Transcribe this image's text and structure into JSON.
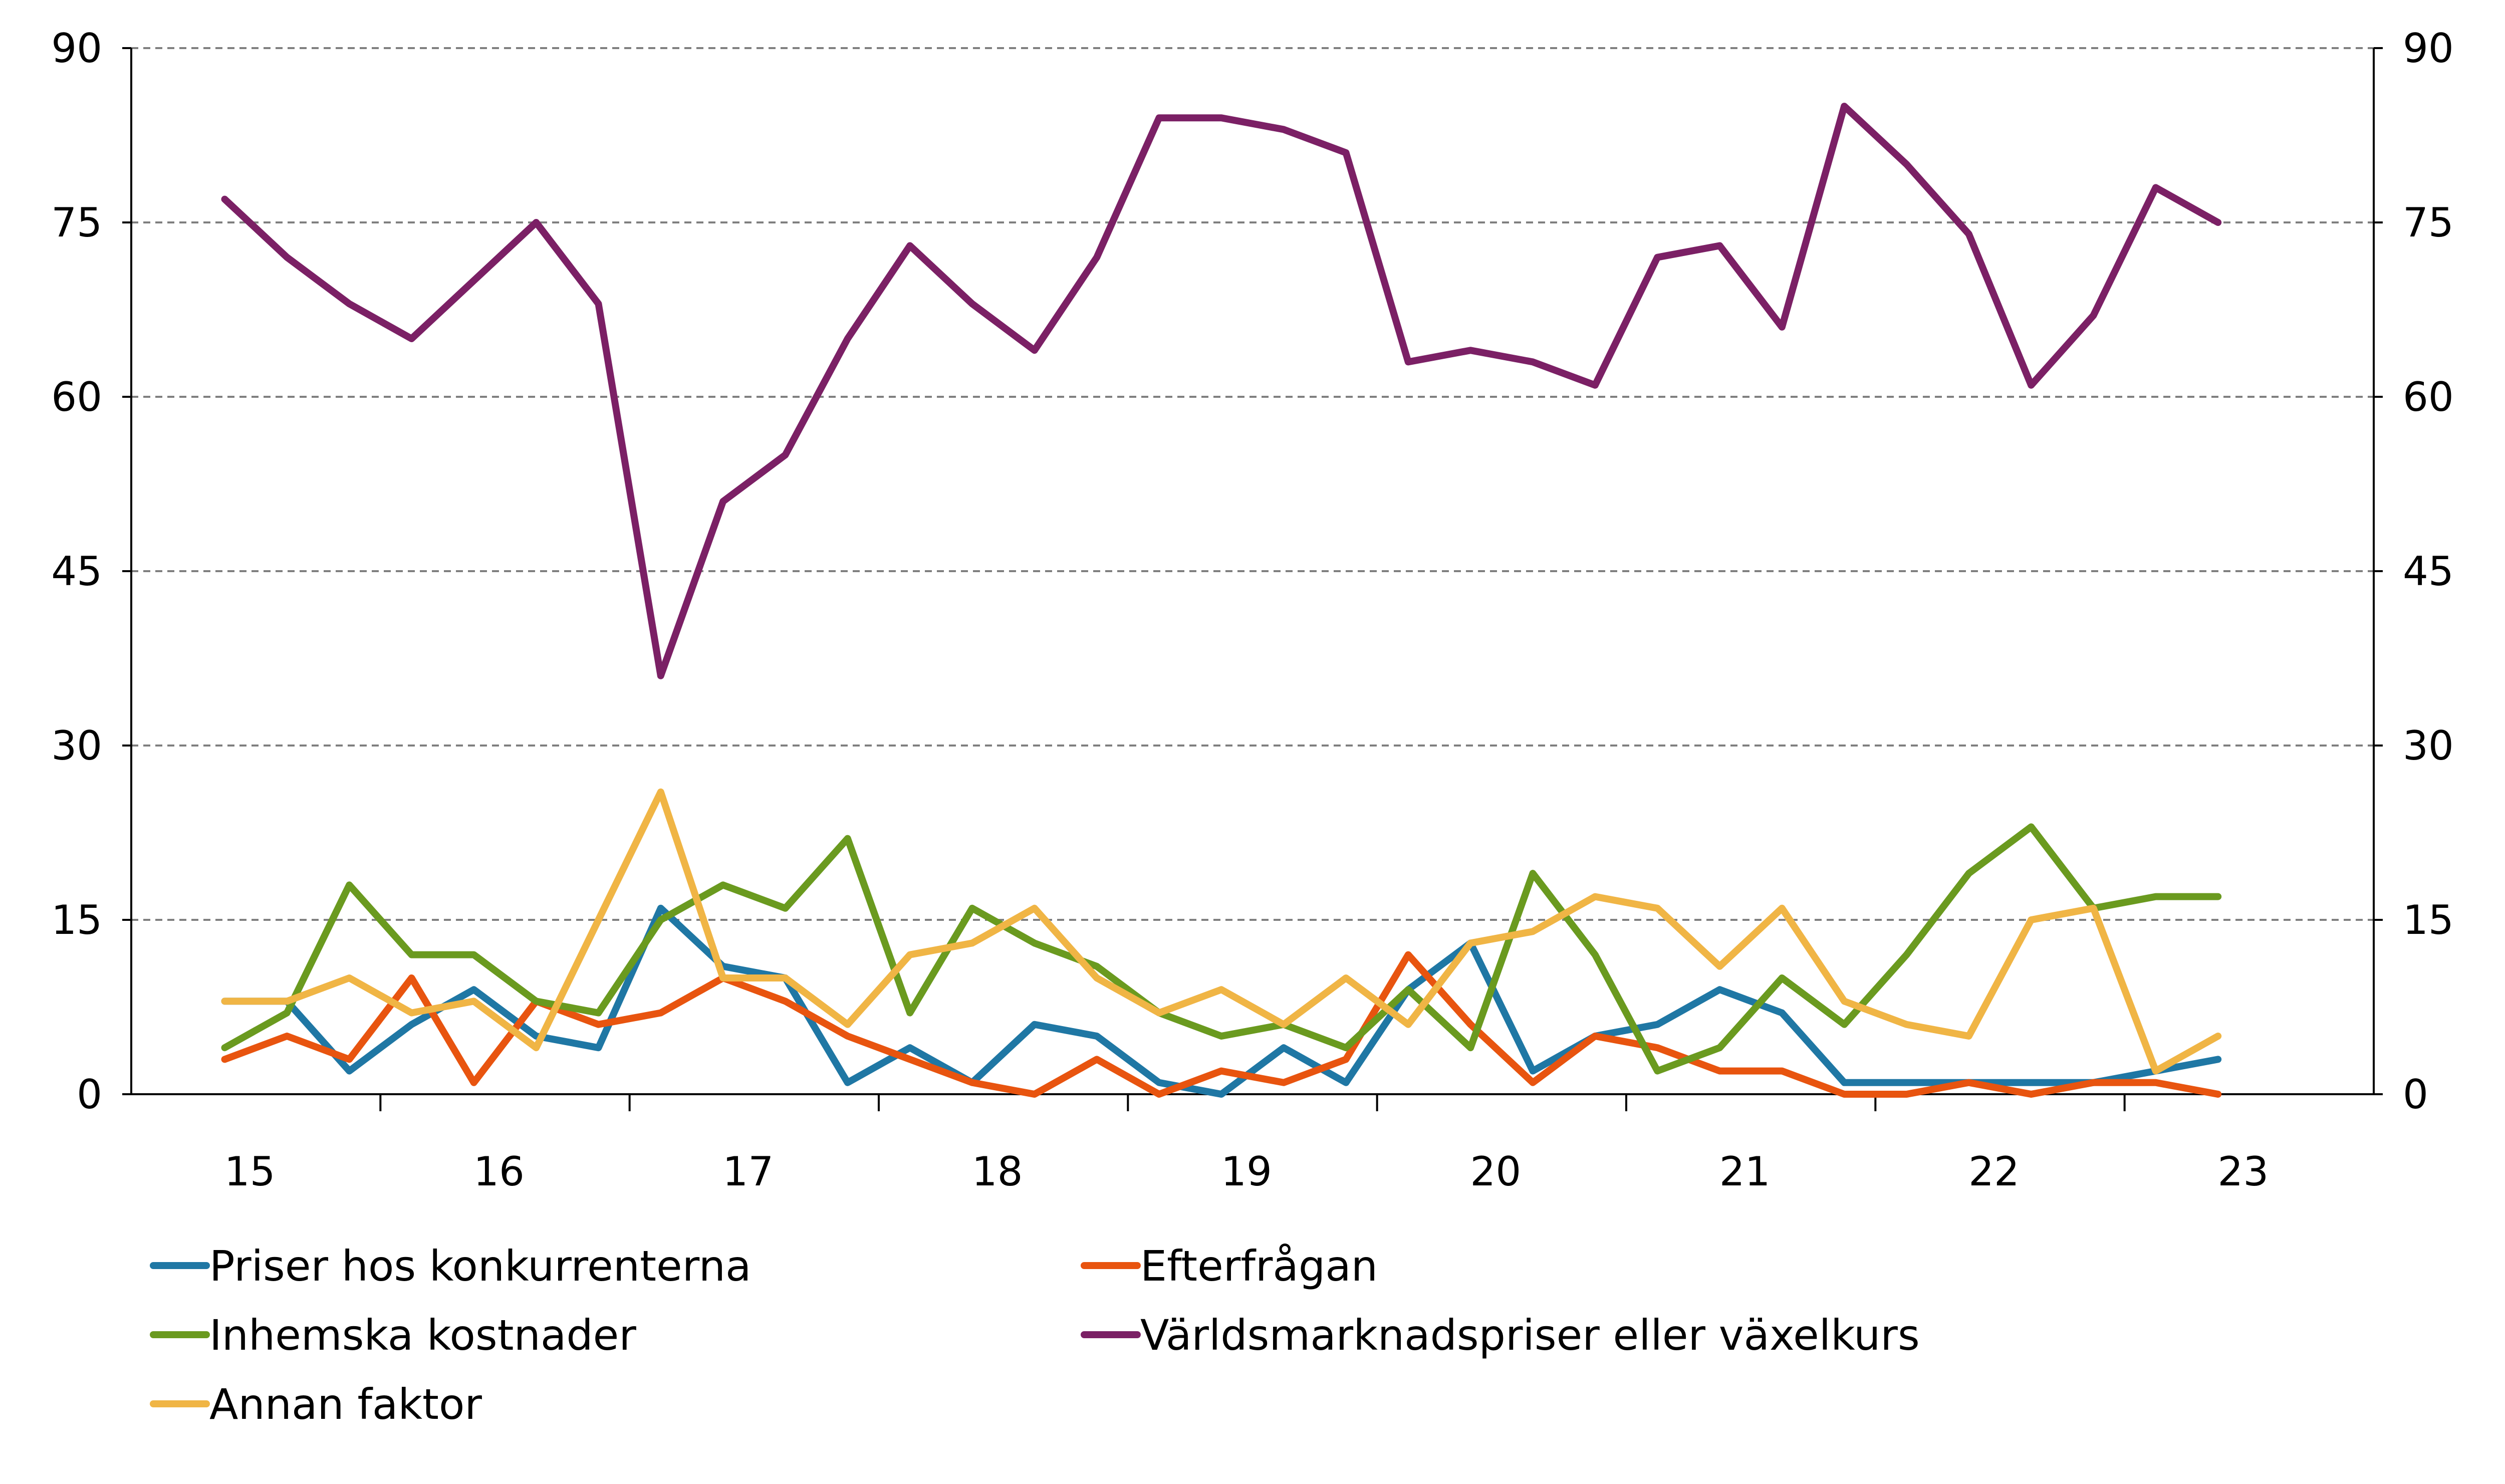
{
  "chart_data": {
    "type": "line",
    "title": "",
    "xlabel": "",
    "ylabel": "",
    "ylim": [
      0,
      90
    ],
    "y_ticks": [
      "0",
      "15",
      "30",
      "45",
      "60",
      "75",
      "90"
    ],
    "y2_ticks": [
      "0",
      "15",
      "30",
      "45",
      "60",
      "75",
      "90"
    ],
    "x_tick_labels": [
      "15",
      "16",
      "17",
      "18",
      "19",
      "20",
      "21",
      "22",
      "23"
    ],
    "x": [
      1,
      2,
      3,
      4,
      5,
      6,
      7,
      8,
      9,
      10,
      11,
      12,
      13,
      14,
      15,
      16,
      17,
      18,
      19,
      20,
      21,
      22,
      23,
      24,
      25,
      26,
      27,
      28,
      29,
      30,
      31,
      32,
      33
    ],
    "series": [
      {
        "name": "Priser hos konkurrenterna",
        "color": "#1f77a4",
        "values": [
          8,
          8,
          2,
          6,
          9,
          5,
          4,
          16,
          11,
          10,
          1,
          4,
          1,
          6,
          5,
          1,
          0,
          4,
          1,
          9,
          13,
          2,
          5,
          6,
          9,
          7,
          1,
          1,
          1,
          1,
          1,
          2,
          3
        ]
      },
      {
        "name": "Efterfrågan",
        "color": "#e8540f",
        "values": [
          3,
          5,
          3,
          10,
          1,
          8,
          6,
          7,
          10,
          8,
          5,
          3,
          1,
          0,
          3,
          0,
          2,
          1,
          3,
          12,
          6,
          1,
          5,
          4,
          2,
          2,
          0,
          0,
          1,
          0,
          1,
          1,
          0
        ]
      },
      {
        "name": "Inhemska kostnader",
        "color": "#6a9a1f",
        "values": [
          4,
          7,
          18,
          12,
          12,
          8,
          7,
          15,
          18,
          16,
          22,
          7,
          16,
          13,
          11,
          7,
          5,
          6,
          4,
          9,
          4,
          19,
          12,
          2,
          4,
          10,
          6,
          12,
          19,
          23,
          16,
          17,
          17
        ]
      },
      {
        "name": "Världsmarknadspriser eller växelkurs",
        "color": "#7b2065",
        "values": [
          77,
          72,
          68,
          65,
          70,
          75,
          68,
          36,
          51,
          55,
          65,
          73,
          68,
          64,
          72,
          84,
          84,
          83,
          81,
          63,
          64,
          63,
          61,
          72,
          73,
          66,
          85,
          80,
          74,
          61,
          67,
          78,
          75
        ]
      },
      {
        "name": "Annan faktor",
        "color": "#f0b545",
        "values": [
          8,
          8,
          10,
          7,
          8,
          4,
          15,
          26,
          10,
          10,
          6,
          12,
          13,
          16,
          10,
          7,
          9,
          6,
          10,
          6,
          13,
          14,
          17,
          16,
          11,
          16,
          8,
          6,
          5,
          15,
          16,
          2,
          5
        ]
      }
    ],
    "legend": [
      "Priser hos konkurrenterna",
      "Efterfrågan",
      "Inhemska kostnader",
      "Världsmarknadspriser eller växelkurs",
      "Annan faktor"
    ],
    "legend_position": "bottom",
    "grid": true
  }
}
